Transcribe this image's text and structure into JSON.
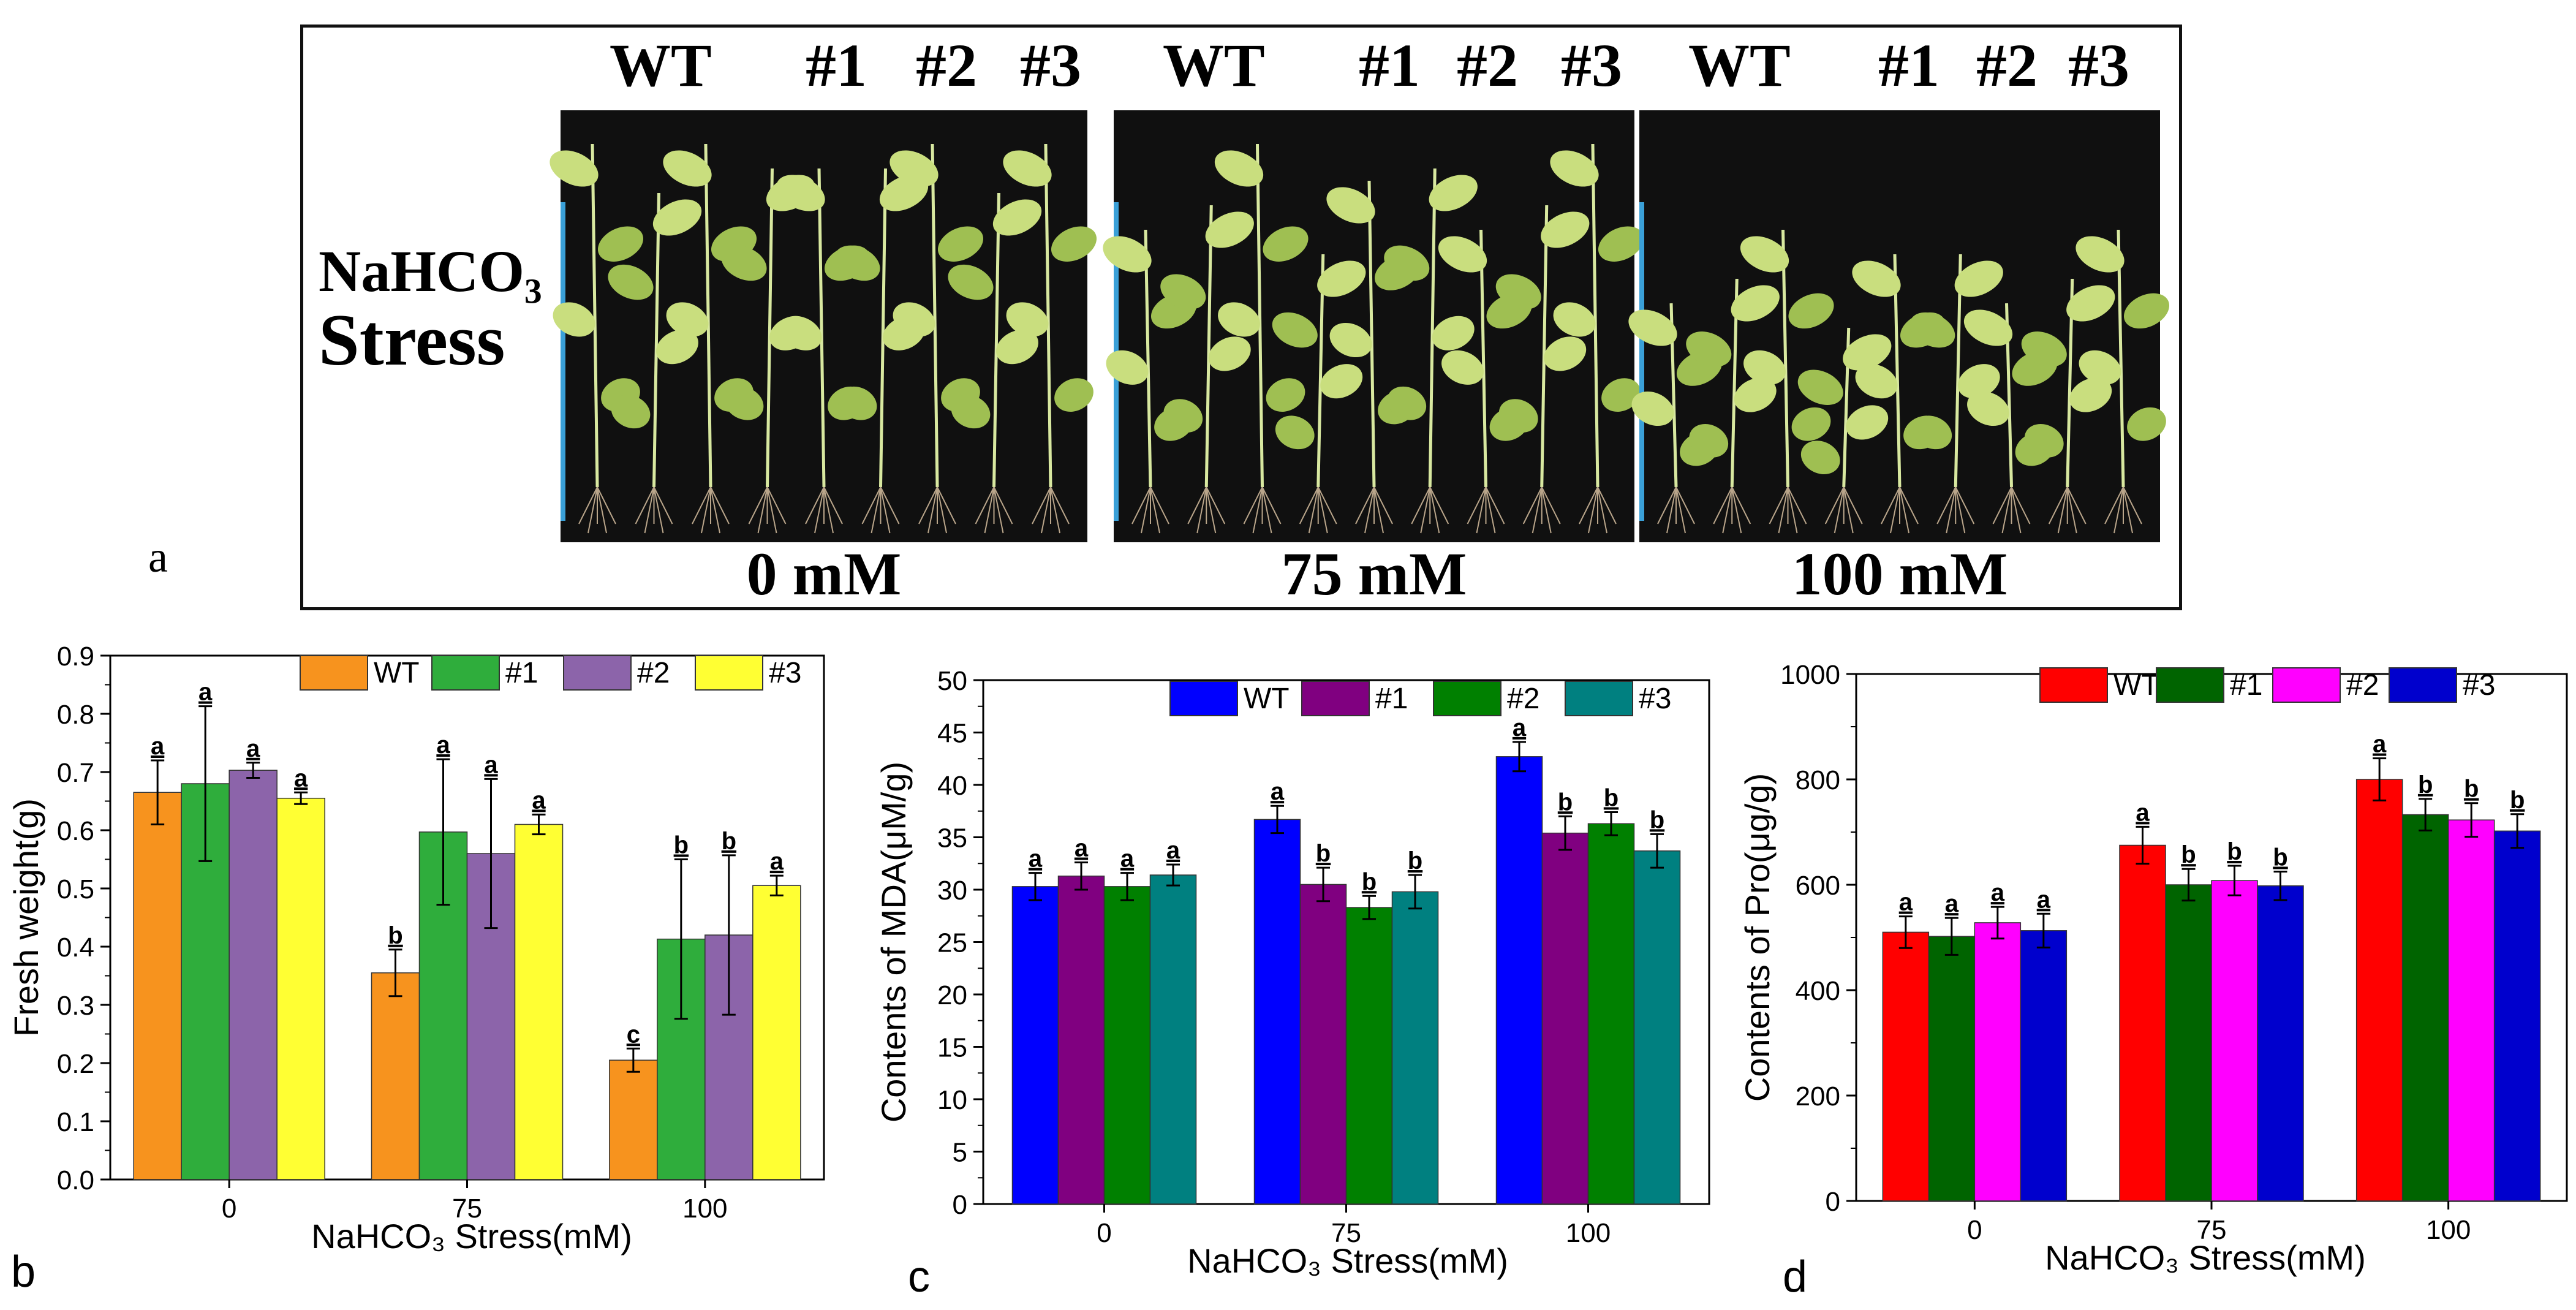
{
  "panel_a": {
    "letter": "a",
    "stress_line1": "NaHCO₃",
    "stress_line2": "Stress",
    "groups": [
      {
        "headers": [
          "WT",
          "#1",
          "#2",
          "#3"
        ],
        "concentration": "0 mM"
      },
      {
        "headers": [
          "WT",
          "#1",
          "#2",
          "#3"
        ],
        "concentration": "75 mM"
      },
      {
        "headers": [
          "WT",
          "#1",
          "#2",
          "#3"
        ],
        "concentration": "100 mM"
      }
    ],
    "colors": {
      "background": "#101010",
      "leaf": "#c9de7e",
      "leaf_dark": "#9fbf52",
      "stem": "#d8e8a0",
      "root": "#b9a58a",
      "tag": "#3aa0d8"
    }
  },
  "chart_data": [
    {
      "id": "b",
      "letter": "b",
      "type": "bar",
      "categories": [
        "0",
        "75",
        "100"
      ],
      "xlabel": "NaHCO₃  Stress(mM)",
      "ylabel": "Fresh weight(g)",
      "ylim": [
        0,
        0.9
      ],
      "yticks": [
        "0.0",
        "0.1",
        "0.2",
        "0.3",
        "0.4",
        "0.5",
        "0.6",
        "0.7",
        "0.8",
        "0.9"
      ],
      "legend_position": "top-right",
      "series": [
        {
          "name": "WT",
          "color": "#f7931e",
          "values": [
            0.665,
            0.355,
            0.205
          ],
          "errors": [
            0.055,
            0.04,
            0.02
          ],
          "letters": [
            "a",
            "b",
            "c"
          ]
        },
        {
          "name": "#1",
          "color": "#2fad3c",
          "values": [
            0.68,
            0.597,
            0.413
          ],
          "errors": [
            0.133,
            0.125,
            0.137
          ],
          "letters": [
            "a",
            "a",
            "b"
          ]
        },
        {
          "name": "#2",
          "color": "#8c64aa",
          "values": [
            0.703,
            0.56,
            0.42
          ],
          "errors": [
            0.013,
            0.128,
            0.137
          ],
          "letters": [
            "a",
            "a",
            "b"
          ]
        },
        {
          "name": "#3",
          "color": "#ffff33",
          "values": [
            0.655,
            0.61,
            0.505
          ],
          "errors": [
            0.01,
            0.017,
            0.017
          ],
          "letters": [
            "a",
            "a",
            "a"
          ]
        }
      ]
    },
    {
      "id": "c",
      "letter": "c",
      "type": "bar",
      "categories": [
        "0",
        "75",
        "100"
      ],
      "xlabel": "NaHCO₃  Stress(mM)",
      "ylabel": "Contents of MDA(μM/g)",
      "ylim": [
        0,
        50
      ],
      "yticks": [
        "0",
        "5",
        "10",
        "15",
        "20",
        "25",
        "30",
        "35",
        "40",
        "45",
        "50"
      ],
      "legend_position": "top-right",
      "series": [
        {
          "name": "WT",
          "color": "#0000ff",
          "values": [
            30.3,
            36.7,
            42.7
          ],
          "errors": [
            1.3,
            1.3,
            1.4
          ],
          "letters": [
            "a",
            "a",
            "a"
          ]
        },
        {
          "name": "#1",
          "color": "#800080",
          "values": [
            31.3,
            30.5,
            35.4
          ],
          "errors": [
            1.3,
            1.6,
            1.6
          ],
          "letters": [
            "a",
            "b",
            "b"
          ]
        },
        {
          "name": "#2",
          "color": "#008000",
          "values": [
            30.3,
            28.3,
            36.3
          ],
          "errors": [
            1.3,
            1.1,
            1.1
          ],
          "letters": [
            "a",
            "b",
            "b"
          ]
        },
        {
          "name": "#3",
          "color": "#008080",
          "values": [
            31.4,
            29.8,
            33.7
          ],
          "errors": [
            1.0,
            1.6,
            1.6
          ],
          "letters": [
            "a",
            "b",
            "b"
          ]
        }
      ]
    },
    {
      "id": "d",
      "letter": "d",
      "type": "bar",
      "categories": [
        "0",
        "75",
        "100"
      ],
      "xlabel": "NaHCO₃  Stress(mM)",
      "ylabel": "Contents of Pro(μg/g)",
      "ylim": [
        0,
        1000
      ],
      "yticks": [
        "0",
        "200",
        "400",
        "600",
        "800",
        "1000"
      ],
      "legend_position": "top-right",
      "series": [
        {
          "name": "WT",
          "color": "#ff0000",
          "values": [
            510,
            675,
            800
          ],
          "errors": [
            30,
            35,
            40
          ],
          "letters": [
            "a",
            "a",
            "a"
          ]
        },
        {
          "name": "#1",
          "color": "#006400",
          "values": [
            502,
            600,
            733
          ],
          "errors": [
            35,
            30,
            30
          ],
          "letters": [
            "a",
            "b",
            "b"
          ]
        },
        {
          "name": "#2",
          "color": "#ff00ff",
          "values": [
            528,
            608,
            723
          ],
          "errors": [
            30,
            28,
            32
          ],
          "letters": [
            "a",
            "b",
            "b"
          ]
        },
        {
          "name": "#3",
          "color": "#0000cd",
          "values": [
            513,
            598,
            702
          ],
          "errors": [
            32,
            27,
            32
          ],
          "letters": [
            "a",
            "b",
            "b"
          ]
        }
      ]
    }
  ]
}
